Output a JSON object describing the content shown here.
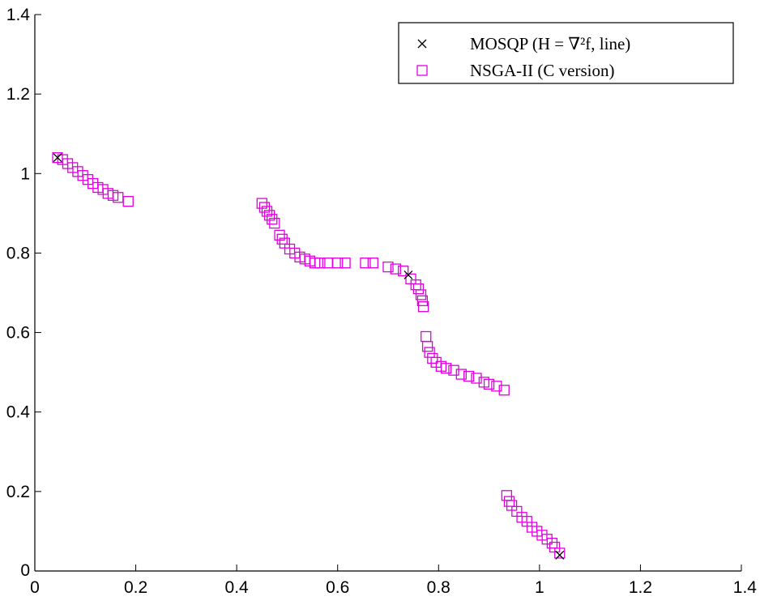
{
  "chart_data": {
    "type": "scatter",
    "title": "",
    "xlabel": "",
    "ylabel": "",
    "xlim": [
      0,
      1.4
    ],
    "ylim": [
      0,
      1.4
    ],
    "xticks": [
      0,
      0.2,
      0.4,
      0.6,
      0.8,
      1,
      1.2,
      1.4
    ],
    "yticks": [
      0,
      0.2,
      0.4,
      0.6,
      0.8,
      1,
      1.2,
      1.4
    ],
    "xtick_labels": [
      "0",
      "0.2",
      "0.4",
      "0.6",
      "0.8",
      "1",
      "1.2",
      "1.4"
    ],
    "ytick_labels": [
      "0",
      "0.2",
      "0.4",
      "0.6",
      "0.8",
      "1",
      "1.2",
      "1.4"
    ],
    "grid": false,
    "legend_position": "top-right",
    "series": [
      {
        "name": "MOSQP (H = ∇²f, line)",
        "marker": "x",
        "color": "#000000",
        "points": [
          [
            0.045,
            1.04
          ],
          [
            0.74,
            0.745
          ],
          [
            1.04,
            0.04
          ]
        ]
      },
      {
        "name": "NSGA-II (C version)",
        "marker": "square",
        "color": "#e000e0",
        "points": [
          [
            0.045,
            1.04
          ],
          [
            0.055,
            1.035
          ],
          [
            0.065,
            1.025
          ],
          [
            0.075,
            1.015
          ],
          [
            0.085,
            1.005
          ],
          [
            0.095,
            0.995
          ],
          [
            0.105,
            0.985
          ],
          [
            0.115,
            0.975
          ],
          [
            0.125,
            0.965
          ],
          [
            0.135,
            0.96
          ],
          [
            0.145,
            0.95
          ],
          [
            0.155,
            0.945
          ],
          [
            0.165,
            0.94
          ],
          [
            0.185,
            0.93
          ],
          [
            0.45,
            0.925
          ],
          [
            0.455,
            0.915
          ],
          [
            0.46,
            0.905
          ],
          [
            0.465,
            0.895
          ],
          [
            0.47,
            0.885
          ],
          [
            0.475,
            0.875
          ],
          [
            0.485,
            0.845
          ],
          [
            0.49,
            0.835
          ],
          [
            0.495,
            0.825
          ],
          [
            0.505,
            0.81
          ],
          [
            0.515,
            0.8
          ],
          [
            0.525,
            0.79
          ],
          [
            0.535,
            0.785
          ],
          [
            0.545,
            0.78
          ],
          [
            0.555,
            0.775
          ],
          [
            0.565,
            0.775
          ],
          [
            0.58,
            0.775
          ],
          [
            0.6,
            0.775
          ],
          [
            0.615,
            0.775
          ],
          [
            0.655,
            0.775
          ],
          [
            0.67,
            0.775
          ],
          [
            0.7,
            0.765
          ],
          [
            0.715,
            0.76
          ],
          [
            0.73,
            0.755
          ],
          [
            0.745,
            0.735
          ],
          [
            0.755,
            0.72
          ],
          [
            0.76,
            0.71
          ],
          [
            0.765,
            0.695
          ],
          [
            0.768,
            0.68
          ],
          [
            0.77,
            0.665
          ],
          [
            0.775,
            0.59
          ],
          [
            0.778,
            0.565
          ],
          [
            0.782,
            0.55
          ],
          [
            0.788,
            0.535
          ],
          [
            0.795,
            0.525
          ],
          [
            0.805,
            0.515
          ],
          [
            0.815,
            0.51
          ],
          [
            0.83,
            0.505
          ],
          [
            0.845,
            0.495
          ],
          [
            0.86,
            0.49
          ],
          [
            0.875,
            0.485
          ],
          [
            0.89,
            0.475
          ],
          [
            0.9,
            0.47
          ],
          [
            0.915,
            0.465
          ],
          [
            0.93,
            0.455
          ],
          [
            0.935,
            0.19
          ],
          [
            0.94,
            0.175
          ],
          [
            0.945,
            0.165
          ],
          [
            0.955,
            0.15
          ],
          [
            0.965,
            0.135
          ],
          [
            0.975,
            0.125
          ],
          [
            0.985,
            0.11
          ],
          [
            0.995,
            0.1
          ],
          [
            1.005,
            0.09
          ],
          [
            1.015,
            0.08
          ],
          [
            1.025,
            0.07
          ],
          [
            1.03,
            0.06
          ],
          [
            1.04,
            0.045
          ]
        ]
      }
    ]
  }
}
